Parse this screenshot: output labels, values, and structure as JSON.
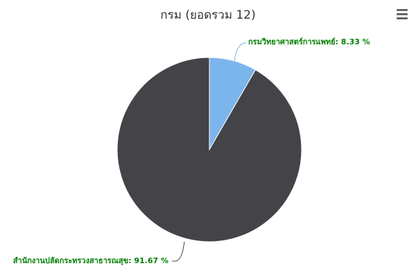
{
  "title": "กรม (ยอดรวม 12)",
  "menu": {
    "icon": "hamburger-menu-icon"
  },
  "colors": {
    "label_text": "#008000",
    "connector": "#7cb5ec",
    "connector_2": "#434348"
  },
  "chart_data": {
    "type": "pie",
    "title": "กรม (ยอดรวม 12)",
    "total": 12,
    "slices": [
      {
        "name": "กรมวิทยาศาสตร์การแพทย์",
        "value": 8.33,
        "label": "กรมวิทยาศาสตร์การแพทย์: 8.33 %",
        "color": "#7cb5ec"
      },
      {
        "name": "สำนักงานปลัดกระทรวงสาธารณสุข",
        "value": 91.67,
        "label": "สำนักงานปลัดกระทรวงสาธารณสุข: 91.67 %",
        "color": "#434348"
      }
    ]
  }
}
